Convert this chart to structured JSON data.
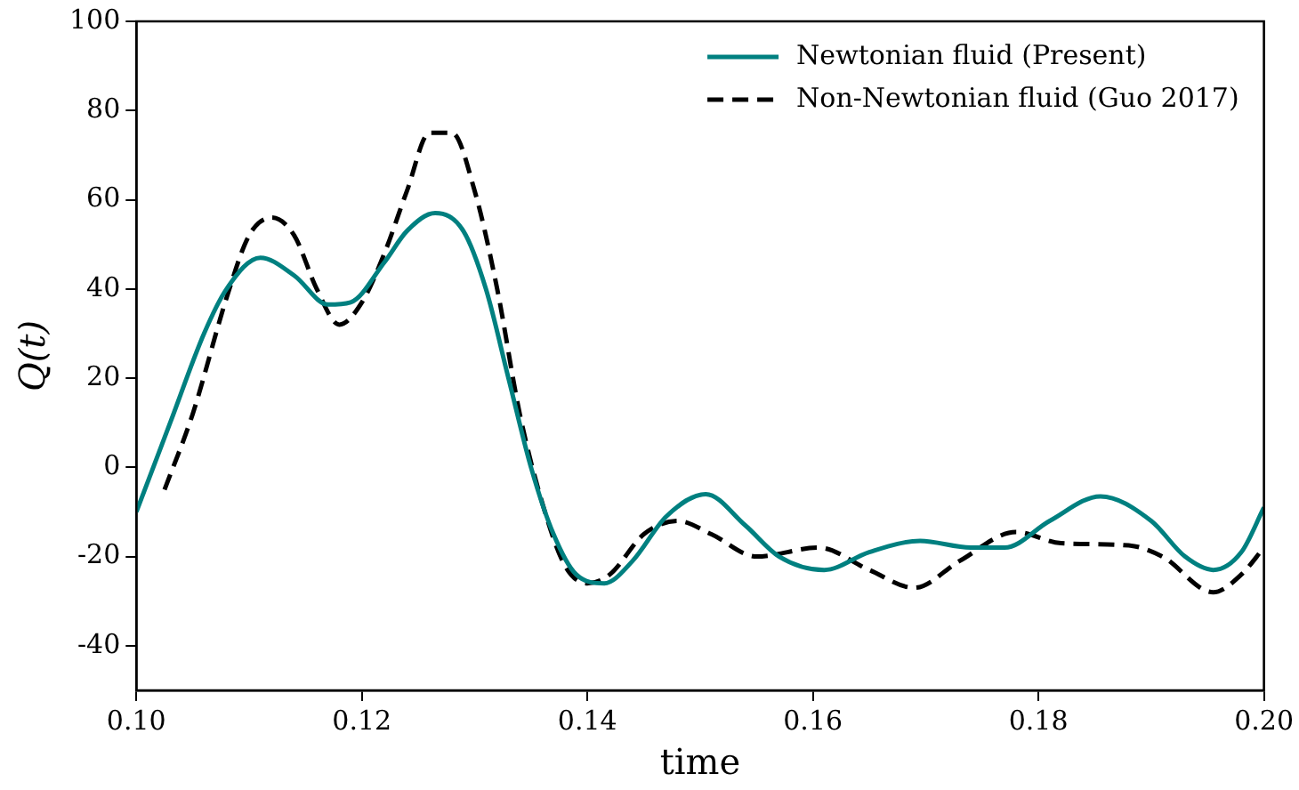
{
  "chart_data": {
    "type": "line",
    "xlabel": "time",
    "ylabel": "Q(t)",
    "xlim": [
      0.1,
      0.2
    ],
    "xticks": [
      {
        "value": 0.1,
        "label": "0.10"
      },
      {
        "value": 0.12,
        "label": "0.12"
      },
      {
        "value": 0.14,
        "label": "0.14"
      },
      {
        "value": 0.16,
        "label": "0.16"
      },
      {
        "value": 0.18,
        "label": "0.18"
      },
      {
        "value": 0.2,
        "label": "0.20"
      }
    ],
    "ylim": [
      -50,
      100
    ],
    "yticks": [
      -40,
      -20,
      0,
      20,
      40,
      60,
      80,
      100
    ],
    "grid": false,
    "legend": "top right",
    "marker": "none",
    "series": [
      {
        "name": "Newtonian fluid (Present)",
        "color": "#008080",
        "line_style": "solid",
        "x": [
          0.1,
          0.103,
          0.106,
          0.108,
          0.111,
          0.114,
          0.117,
          0.119,
          0.122,
          0.124,
          0.1265,
          0.129,
          0.131,
          0.133,
          0.135,
          0.137,
          0.139,
          0.1415,
          0.144,
          0.147,
          0.1505,
          0.154,
          0.157,
          0.161,
          0.165,
          0.1695,
          0.174,
          0.177,
          0.181,
          0.1855,
          0.19,
          0.193,
          0.1955,
          0.198,
          0.2
        ],
        "values": [
          -10,
          10,
          30,
          40,
          47,
          43,
          36.5,
          37,
          46,
          53,
          57,
          53,
          40,
          20,
          0,
          -15,
          -24,
          -26,
          -21,
          -11,
          -6,
          -13,
          -20,
          -23,
          -19,
          -16.5,
          -18,
          -18,
          -12,
          -6.5,
          -12,
          -20,
          -23,
          -19,
          -9
        ]
      },
      {
        "name": "Non-Newtonian fluid (Guo 2017)",
        "color": "#000000",
        "line_style": "dashed",
        "x": [
          0.1025,
          0.105,
          0.108,
          0.11,
          0.112,
          0.114,
          0.116,
          0.118,
          0.12,
          0.122,
          0.124,
          0.126,
          0.128,
          0.13,
          0.132,
          0.134,
          0.136,
          0.138,
          0.14,
          0.142,
          0.145,
          0.148,
          0.151,
          0.155,
          0.1605,
          0.165,
          0.169,
          0.173,
          0.178,
          0.182,
          0.188,
          0.191,
          0.1955,
          0.198,
          0.2
        ],
        "values": [
          -5,
          12,
          38,
          52,
          56,
          52,
          40,
          32,
          37,
          48,
          62,
          75,
          75,
          62,
          40,
          12,
          -8,
          -22,
          -26,
          -24,
          -15,
          -12,
          -15,
          -20,
          -18,
          -23,
          -27,
          -21,
          -14.5,
          -17,
          -17.5,
          -20,
          -28,
          -24,
          -18
        ]
      }
    ]
  }
}
